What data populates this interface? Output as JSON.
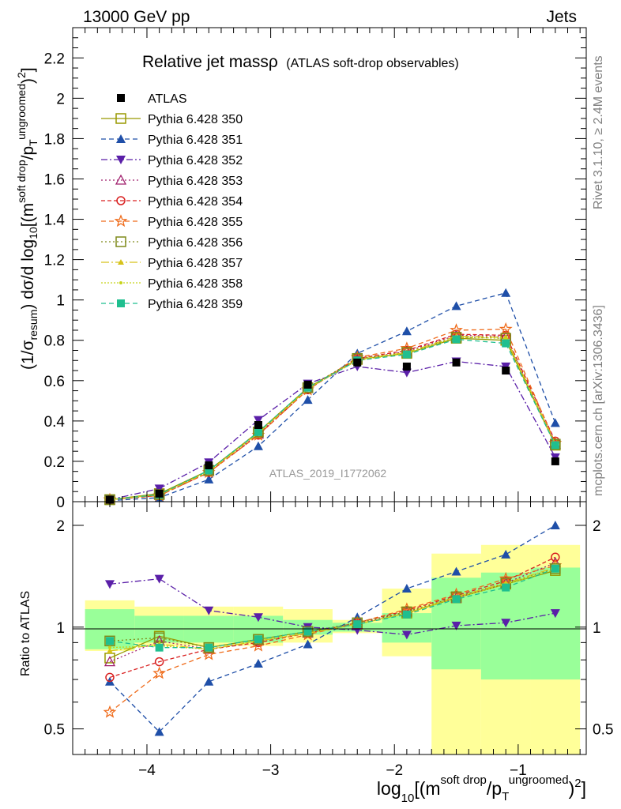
{
  "header": {
    "left": "13000 GeV pp",
    "right": "Jets"
  },
  "side_text": {
    "rivet": "Rivet 3.1.10, ≥ 2.4M events",
    "mcplots": "mcplots.cern.ch [arXiv:1306.3436]"
  },
  "chart_data": {
    "type": "line",
    "title_main": "Relative jet massρ",
    "title_sub": "(ATLAS soft-drop observables)",
    "watermark": "ATLAS_2019_I1772062",
    "xlabel": "log10[(m^soft drop/pT^ungroomed)^2]",
    "ylabel_main": "(1/σresum) dσ/d log10[(m^soft drop/pT^ungroomed)^2]",
    "ylabel_ratio": "Ratio to ATLAS",
    "xlim": [
      -4.6,
      -0.45
    ],
    "ylim_main": [
      0,
      2.35
    ],
    "ylim_ratio": [
      0.42,
      2.35
    ],
    "ratio_scale": "log",
    "x_ticks": [
      "−4",
      "−3",
      "−2",
      "−1"
    ],
    "y_ticks_main": [
      "0",
      "0.2",
      "0.4",
      "0.6",
      "0.8",
      "1",
      "1.2",
      "1.4",
      "1.6",
      "1.8",
      "2",
      "2.2"
    ],
    "y_ticks_ratio": [
      "0.5",
      "1",
      "2"
    ],
    "x": [
      -4.3,
      -3.9,
      -3.5,
      -3.1,
      -2.7,
      -2.3,
      -1.9,
      -1.5,
      -1.1,
      -0.7
    ],
    "bins": [
      [
        -4.5,
        -4.1
      ],
      [
        -4.1,
        -3.7
      ],
      [
        -3.7,
        -3.3
      ],
      [
        -3.3,
        -2.9
      ],
      [
        -2.9,
        -2.5
      ],
      [
        -2.5,
        -2.1
      ],
      [
        -2.1,
        -1.7
      ],
      [
        -1.7,
        -1.3
      ],
      [
        -1.3,
        -0.9
      ],
      [
        -0.9,
        -0.5
      ]
    ],
    "data": {
      "name": "ATLAS",
      "values": [
        0.01,
        0.04,
        0.18,
        0.38,
        0.58,
        0.69,
        0.67,
        0.69,
        0.65,
        0.2
      ]
    },
    "band_stat": {
      "lo": [
        0.86,
        0.9,
        0.9,
        0.9,
        0.95,
        0.97,
        0.9,
        0.75,
        0.7,
        0.7
      ],
      "hi": [
        1.13,
        1.08,
        1.08,
        1.08,
        1.05,
        1.03,
        1.1,
        1.4,
        1.45,
        1.5
      ]
    },
    "band_total": {
      "lo": [
        0.85,
        0.88,
        0.88,
        0.88,
        0.9,
        0.96,
        0.82,
        0.38,
        0.39,
        0.4
      ],
      "hi": [
        1.2,
        1.15,
        1.15,
        1.15,
        1.13,
        1.05,
        1.3,
        1.65,
        1.75,
        1.75
      ]
    },
    "series": [
      {
        "name": "Pythia 6.428 350",
        "color": "#999900",
        "marker": "square-open",
        "dash": "",
        "values": [
          0.01,
          0.04,
          0.155,
          0.345,
          0.565,
          0.705,
          0.735,
          0.81,
          0.8,
          0.28
        ],
        "ratio": [
          0.81,
          0.94,
          0.87,
          0.92,
          0.97,
          1.02,
          1.1,
          1.22,
          1.34,
          1.47
        ]
      },
      {
        "name": "Pythia 6.428 351",
        "color": "#1f4fa8",
        "marker": "triangle-up",
        "dash": "6,4",
        "values": [
          0.005,
          0.02,
          0.11,
          0.275,
          0.505,
          0.735,
          0.845,
          0.97,
          1.035,
          0.39
        ],
        "ratio": [
          0.69,
          0.49,
          0.69,
          0.78,
          0.89,
          1.07,
          1.3,
          1.46,
          1.64,
          2.0
        ]
      },
      {
        "name": "Pythia 6.428 352",
        "color": "#5a1fa8",
        "marker": "triangle-down",
        "dash": "8,3,2,3",
        "values": [
          0.01,
          0.065,
          0.195,
          0.405,
          0.585,
          0.67,
          0.64,
          0.695,
          0.67,
          0.22
        ],
        "ratio": [
          1.34,
          1.39,
          1.12,
          1.07,
          1.0,
          0.98,
          0.95,
          1.01,
          1.03,
          1.1
        ]
      },
      {
        "name": "Pythia 6.428 353",
        "color": "#a0206e",
        "marker": "triangle-open",
        "dash": "2,3",
        "values": [
          0.01,
          0.035,
          0.15,
          0.335,
          0.56,
          0.705,
          0.745,
          0.825,
          0.82,
          0.285
        ],
        "ratio": [
          0.79,
          0.91,
          0.86,
          0.91,
          0.96,
          1.02,
          1.11,
          1.22,
          1.35,
          1.55
        ]
      },
      {
        "name": "Pythia 6.428 354",
        "color": "#d92020",
        "marker": "circle-open",
        "dash": "5,3",
        "values": [
          0.01,
          0.03,
          0.145,
          0.33,
          0.555,
          0.71,
          0.75,
          0.83,
          0.825,
          0.3
        ],
        "ratio": [
          0.71,
          0.79,
          0.86,
          0.9,
          0.96,
          1.03,
          1.12,
          1.24,
          1.37,
          1.61
        ]
      },
      {
        "name": "Pythia 6.428 355",
        "color": "#ef6b1a",
        "marker": "star-open",
        "dash": "6,4",
        "values": [
          0.01,
          0.03,
          0.145,
          0.33,
          0.555,
          0.715,
          0.76,
          0.85,
          0.855,
          0.29
        ],
        "ratio": [
          0.56,
          0.73,
          0.83,
          0.88,
          0.95,
          1.03,
          1.13,
          1.25,
          1.39,
          1.52
        ]
      },
      {
        "name": "Pythia 6.428 356",
        "color": "#7f8a1a",
        "marker": "square-open",
        "dash": "2,3",
        "values": [
          0.01,
          0.035,
          0.155,
          0.345,
          0.565,
          0.71,
          0.74,
          0.815,
          0.81,
          0.285
        ],
        "ratio": [
          0.91,
          0.93,
          0.87,
          0.92,
          0.97,
          1.03,
          1.11,
          1.23,
          1.35,
          1.49
        ]
      },
      {
        "name": "Pythia 6.428 357",
        "color": "#d6c21a",
        "marker": "triangle-filled",
        "dash": "10,3,2,3",
        "values": [
          0.01,
          0.035,
          0.15,
          0.34,
          0.56,
          0.705,
          0.74,
          0.82,
          0.815,
          0.285
        ],
        "ratio": [
          0.85,
          0.89,
          0.86,
          0.91,
          0.96,
          1.02,
          1.1,
          1.23,
          1.35,
          1.5
        ]
      },
      {
        "name": "Pythia 6.428 358",
        "color": "#c8d41a",
        "marker": "dot",
        "dash": "2,2",
        "values": [
          0.01,
          0.035,
          0.15,
          0.34,
          0.56,
          0.7,
          0.735,
          0.815,
          0.81,
          0.28
        ],
        "ratio": [
          0.87,
          0.88,
          0.86,
          0.91,
          0.96,
          1.02,
          1.1,
          1.22,
          1.34,
          1.48
        ]
      },
      {
        "name": "Pythia 6.428 359",
        "color": "#1fbf8f",
        "marker": "square-filled",
        "dash": "6,4",
        "values": [
          0.01,
          0.035,
          0.155,
          0.345,
          0.565,
          0.7,
          0.73,
          0.805,
          0.785,
          0.28
        ],
        "ratio": [
          0.91,
          0.87,
          0.87,
          0.92,
          0.97,
          1.02,
          1.09,
          1.21,
          1.31,
          1.49
        ]
      }
    ]
  }
}
